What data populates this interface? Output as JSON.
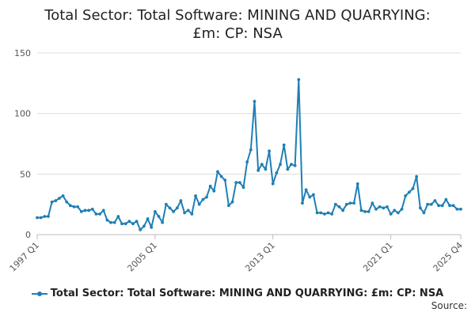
{
  "chart_data": {
    "type": "line",
    "title_line1": "Total Sector: Total Software: MINING AND QUARRYING:",
    "title_line2": "£m: CP: NSA",
    "xlabel": "",
    "ylabel": "",
    "ylim": [
      0,
      150
    ],
    "yticks": [
      0,
      50,
      100,
      150
    ],
    "x_tick_labels": [
      "1997 Q1",
      "2005 Q1",
      "2013 Q1",
      "2021 Q1",
      "2025 Q4"
    ],
    "x_tick_indices": [
      0,
      32,
      64,
      96,
      115
    ],
    "grid": true,
    "legend_placement": "bottom",
    "color": "#1f7fb5",
    "series": [
      {
        "name": "Total Sector: Total Software: MINING AND QUARRYING: £m: CP: NSA",
        "values": [
          14,
          14,
          15,
          15,
          27,
          28,
          30,
          32,
          27,
          24,
          23,
          23,
          19,
          20,
          20,
          21,
          17,
          17,
          20,
          12,
          10,
          10,
          15,
          9,
          9,
          11,
          9,
          11,
          4,
          7,
          13,
          6,
          19,
          15,
          10,
          25,
          22,
          19,
          22,
          28,
          18,
          20,
          17,
          32,
          25,
          29,
          31,
          40,
          36,
          52,
          48,
          45,
          24,
          27,
          43,
          43,
          39,
          60,
          70,
          110,
          53,
          58,
          54,
          69,
          42,
          51,
          58,
          74,
          54,
          58,
          57,
          128,
          26,
          37,
          31,
          33,
          18,
          18,
          17,
          18,
          17,
          25,
          23,
          20,
          25,
          26,
          26,
          42,
          20,
          19,
          19,
          26,
          21,
          23,
          22,
          23,
          17,
          20,
          18,
          21,
          32,
          35,
          38,
          48,
          22,
          18,
          25,
          25,
          28,
          24,
          24,
          29,
          24,
          24,
          21,
          21
        ]
      }
    ]
  },
  "legend": {
    "label": "Total Sector: Total Software: MINING AND QUARRYING: £m: CP: NSA"
  },
  "footer": {
    "source_label": "Source:"
  }
}
